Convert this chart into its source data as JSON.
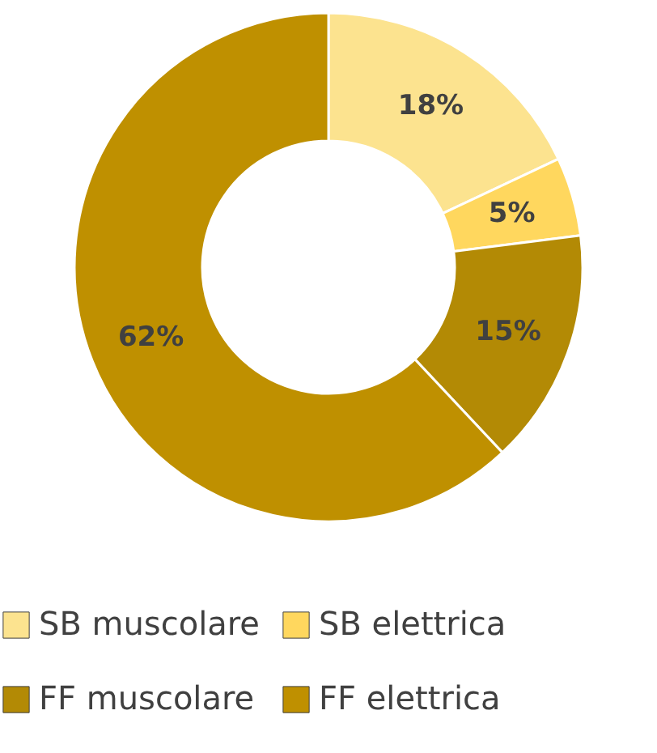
{
  "chart_data": {
    "type": "donut",
    "categories": [
      "SB muscolare",
      "SB elettrica",
      "FF muscolare",
      "FF elettrica"
    ],
    "values": [
      18,
      5,
      15,
      62
    ],
    "colors": [
      "#fce38f",
      "#ffd75e",
      "#b38a05",
      "#bf9000"
    ],
    "value_labels": [
      "18%",
      "5%",
      "15%",
      "62%"
    ],
    "legend": "bottom"
  }
}
